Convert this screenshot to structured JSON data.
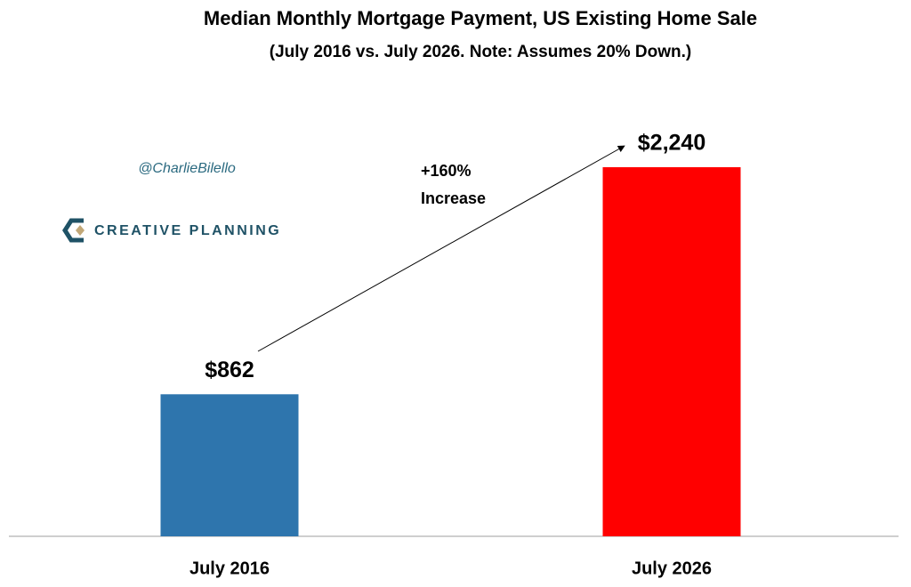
{
  "chart_data": {
    "type": "bar",
    "title": "Median Monthly Mortgage Payment, US Existing Home Sale",
    "subtitle": "(July 2016 vs. July 2026. Note: Assumes 20% Down.)",
    "categories": [
      "July 2016",
      "July 2026"
    ],
    "values": [
      862,
      2240
    ],
    "value_labels": [
      "$862",
      "$2,240"
    ],
    "colors": [
      "#2e75ad",
      "#ff0000"
    ],
    "annotation": [
      "+160%",
      "Increase"
    ],
    "handle": "@CharlieBilello",
    "logo_text": "CREATIVE PLANNING"
  }
}
